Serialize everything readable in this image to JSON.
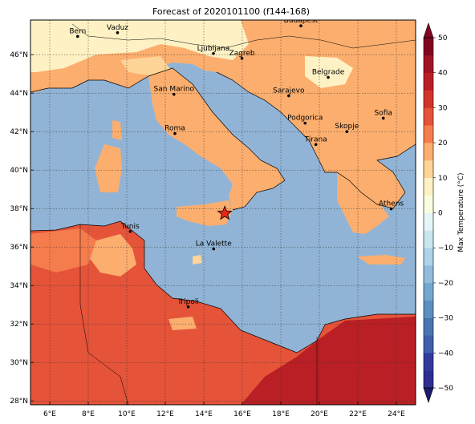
{
  "title": "Forecast of 2020101100 (f144-168)",
  "colors": {
    "sea": "#91b4d6",
    "frame": "#000000",
    "marker": "#e8261c"
  },
  "map": {
    "lon_ticks": [
      "6°E",
      "8°E",
      "10°E",
      "12°E",
      "14°E",
      "16°E",
      "18°E",
      "20°E",
      "22°E",
      "24°E"
    ],
    "lat_ticks": [
      "28°N",
      "30°N",
      "32°N",
      "34°N",
      "36°N",
      "38°N",
      "40°N",
      "42°N",
      "44°N",
      "46°N"
    ],
    "grid": true,
    "cities": [
      {
        "name": "Bern",
        "lon": 7.45,
        "lat": 46.95
      },
      {
        "name": "Vaduz",
        "lon": 9.52,
        "lat": 47.14
      },
      {
        "name": "Budapest",
        "lon": 19.04,
        "lat": 47.5
      },
      {
        "name": "Ljubljana",
        "lon": 14.5,
        "lat": 46.06
      },
      {
        "name": "Zagreb",
        "lon": 15.98,
        "lat": 45.81
      },
      {
        "name": "Belgrade",
        "lon": 20.46,
        "lat": 44.82
      },
      {
        "name": "San Marino",
        "lon": 12.45,
        "lat": 43.94
      },
      {
        "name": "Sarajevo",
        "lon": 18.41,
        "lat": 43.86
      },
      {
        "name": "Sofia",
        "lon": 23.32,
        "lat": 42.7
      },
      {
        "name": "Podgorica",
        "lon": 19.26,
        "lat": 42.44
      },
      {
        "name": "Skopje",
        "lon": 21.43,
        "lat": 42.0
      },
      {
        "name": "Roma",
        "lon": 12.5,
        "lat": 41.9
      },
      {
        "name": "Tirana",
        "lon": 19.82,
        "lat": 41.33
      },
      {
        "name": "Athens",
        "lon": 23.73,
        "lat": 37.98
      },
      {
        "name": "Tunis",
        "lon": 10.18,
        "lat": 36.81
      },
      {
        "name": "La Valette",
        "lon": 14.51,
        "lat": 35.9
      },
      {
        "name": "Tripoli",
        "lon": 13.19,
        "lat": 32.89
      }
    ],
    "star_marker": {
      "lon": 15.09,
      "lat": 37.75
    }
  },
  "colorbar": {
    "label": "Max Temperature (°C)",
    "tick_labels": [
      "50",
      "40",
      "30",
      "20",
      "10",
      "0",
      "−10",
      "−20",
      "−30",
      "−40",
      "−50"
    ],
    "levels": [
      {
        "lo": -50,
        "hi": -45,
        "color": "#2c2f8f"
      },
      {
        "lo": -45,
        "hi": -40,
        "color": "#313a9c"
      },
      {
        "lo": -40,
        "hi": -35,
        "color": "#3f5fac"
      },
      {
        "lo": -35,
        "hi": -30,
        "color": "#4b74b2"
      },
      {
        "lo": -30,
        "hi": -25,
        "color": "#5b8fc2"
      },
      {
        "lo": -25,
        "hi": -20,
        "color": "#74a7d0"
      },
      {
        "lo": -20,
        "hi": -15,
        "color": "#91bcdc"
      },
      {
        "lo": -15,
        "hi": -10,
        "color": "#acd3e6"
      },
      {
        "lo": -10,
        "hi": -5,
        "color": "#c9e6ef"
      },
      {
        "lo": -5,
        "hi": 0,
        "color": "#e6f5f7"
      },
      {
        "lo": 0,
        "hi": 5,
        "color": "#fbfde0"
      },
      {
        "lo": 5,
        "hi": 10,
        "color": "#fef2c4"
      },
      {
        "lo": 10,
        "hi": 15,
        "color": "#fed497"
      },
      {
        "lo": 15,
        "hi": 20,
        "color": "#fcae6e"
      },
      {
        "lo": 20,
        "hi": 25,
        "color": "#f57d4d"
      },
      {
        "lo": 25,
        "hi": 30,
        "color": "#e55339"
      },
      {
        "lo": 30,
        "hi": 35,
        "color": "#d13428"
      },
      {
        "lo": 35,
        "hi": 40,
        "color": "#b91f24"
      },
      {
        "lo": 40,
        "hi": 45,
        "color": "#a11426"
      },
      {
        "lo": 45,
        "hi": 50,
        "color": "#82061f"
      }
    ]
  }
}
